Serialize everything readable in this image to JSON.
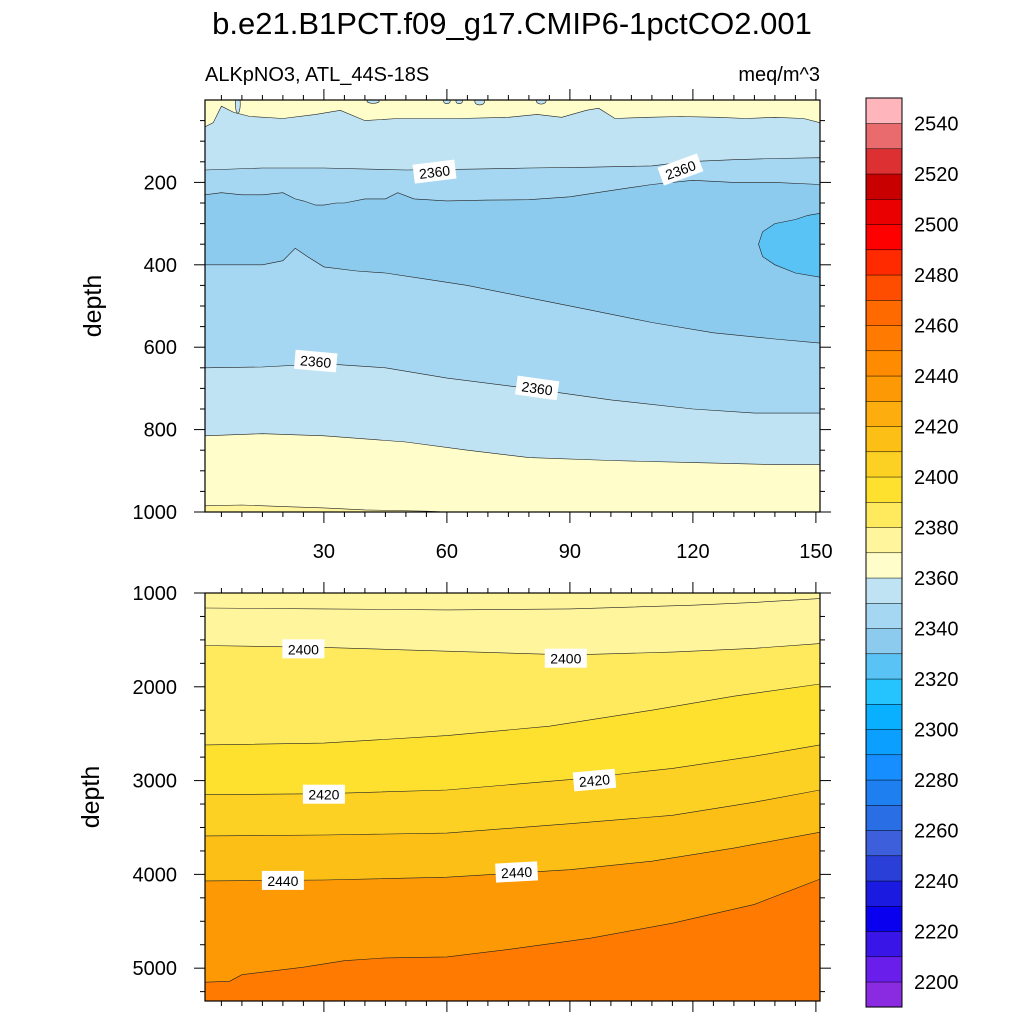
{
  "figure": {
    "title": "b.e21.B1PCT.f09_g17.CMIP6-1pctCO2.001",
    "left_subtitle": "ALKpNO3, ATL_44S-18S",
    "right_subtitle": "meq/m^3"
  },
  "chart_data": [
    {
      "type": "contour",
      "panel": "upper",
      "ylabel": "depth",
      "xlabel": "",
      "xlim": [
        1,
        151
      ],
      "ylim": [
        1000,
        0
      ],
      "xticks": [
        30,
        60,
        90,
        120,
        150
      ],
      "yticks": [
        200,
        400,
        600,
        800,
        1000
      ],
      "contour_labels": [
        {
          "x": 57,
          "depth": 175,
          "text": "2360",
          "angle": -7
        },
        {
          "x": 117,
          "depth": 170,
          "text": "2360",
          "angle": -20
        },
        {
          "x": 28,
          "depth": 635,
          "text": "2360",
          "angle": 5
        },
        {
          "x": 82,
          "depth": 700,
          "text": "2360",
          "angle": 8
        }
      ],
      "regions": [
        {
          "level_min": 2370,
          "level_max": 2380,
          "upper": [
            [
              1,
              0
            ],
            [
              151,
              0
            ]
          ],
          "lower": [
            [
              1,
              1000
            ],
            [
              151,
              1000
            ]
          ]
        },
        {
          "level_min": 2360,
          "level_max": 2370,
          "upper": [
            [
              1,
              65
            ],
            [
              3,
              55
            ],
            [
              5,
              15
            ],
            [
              8,
              30
            ],
            [
              12,
              40
            ],
            [
              20,
              45
            ],
            [
              28,
              35
            ],
            [
              34,
              25
            ],
            [
              40,
              50
            ],
            [
              48,
              45
            ],
            [
              55,
              45
            ],
            [
              63,
              45
            ],
            [
              75,
              42
            ],
            [
              82,
              35
            ],
            [
              88,
              42
            ],
            [
              94,
              25
            ],
            [
              97,
              20
            ],
            [
              101,
              45
            ],
            [
              109,
              42
            ],
            [
              117,
              40
            ],
            [
              126,
              42
            ],
            [
              133,
              45
            ],
            [
              140,
              42
            ],
            [
              147,
              45
            ],
            [
              151,
              55
            ]
          ],
          "lower": [
            [
              1,
              815
            ],
            [
              15,
              810
            ],
            [
              30,
              815
            ],
            [
              50,
              830
            ],
            [
              65,
              850
            ],
            [
              80,
              868
            ],
            [
              100,
              875
            ],
            [
              120,
              880
            ],
            [
              140,
              885
            ],
            [
              151,
              885
            ]
          ]
        },
        {
          "level_min": 2350,
          "level_max": 2360,
          "upper": [
            [
              1,
              170
            ],
            [
              15,
              165
            ],
            [
              30,
              165
            ],
            [
              50,
              170
            ],
            [
              65,
              168
            ],
            [
              80,
              165
            ],
            [
              95,
              163
            ],
            [
              110,
              160
            ],
            [
              118,
              150
            ],
            [
              130,
              145
            ],
            [
              140,
              142
            ],
            [
              151,
              140
            ]
          ],
          "lower": [
            [
              1,
              650
            ],
            [
              15,
              648
            ],
            [
              30,
              640
            ],
            [
              45,
              650
            ],
            [
              60,
              675
            ],
            [
              80,
              700
            ],
            [
              100,
              728
            ],
            [
              120,
              750
            ],
            [
              135,
              760
            ],
            [
              151,
              760
            ]
          ]
        },
        {
          "level_min": 2340,
          "level_max": 2350,
          "upper": [
            [
              1,
              230
            ],
            [
              5,
              225
            ],
            [
              10,
              230
            ],
            [
              15,
              230
            ],
            [
              20,
              225
            ],
            [
              23,
              240
            ],
            [
              25,
              245
            ],
            [
              28,
              255
            ],
            [
              30,
              255
            ],
            [
              33,
              250
            ],
            [
              35,
              250
            ],
            [
              40,
              240
            ],
            [
              45,
              240
            ],
            [
              48,
              225
            ],
            [
              52,
              240
            ],
            [
              60,
              245
            ],
            [
              70,
              243
            ],
            [
              80,
              242
            ],
            [
              90,
              235
            ],
            [
              100,
              220
            ],
            [
              110,
              205
            ],
            [
              120,
              195
            ],
            [
              130,
              200
            ],
            [
              140,
              200
            ],
            [
              151,
              205
            ]
          ],
          "lower": [
            [
              1,
              400
            ],
            [
              15,
              400
            ],
            [
              20,
              390
            ],
            [
              23,
              360
            ],
            [
              26,
              380
            ],
            [
              30,
              405
            ],
            [
              38,
              415
            ],
            [
              45,
              420
            ],
            [
              55,
              435
            ],
            [
              65,
              450
            ],
            [
              80,
              480
            ],
            [
              95,
              510
            ],
            [
              110,
              540
            ],
            [
              125,
              565
            ],
            [
              140,
              580
            ],
            [
              151,
              590
            ]
          ]
        },
        {
          "level_min": 2330,
          "level_max": 2340,
          "upper": [
            [
              151,
              275
            ],
            [
              148,
              280
            ],
            [
              145,
              290
            ],
            [
              140,
              300
            ],
            [
              137,
              320
            ],
            [
              136,
              350
            ],
            [
              137,
              380
            ],
            [
              140,
              400
            ],
            [
              145,
              420
            ],
            [
              151,
              430
            ]
          ],
          "lower": []
        }
      ],
      "ellipses": [
        {
          "x": 9,
          "depth": 10,
          "rx": 0.6,
          "ry": 22,
          "level": 2360
        },
        {
          "x": 60,
          "depth": 3,
          "rx": 0.8,
          "ry": 6,
          "level": 2360
        },
        {
          "x": 63,
          "depth": 3,
          "rx": 0.8,
          "ry": 6,
          "level": 2360
        },
        {
          "x": 68,
          "depth": 4,
          "rx": 1.2,
          "ry": 8,
          "level": 2360
        },
        {
          "x": 42,
          "depth": 3,
          "rx": 1.5,
          "ry": 5,
          "level": 2360
        },
        {
          "x": 83,
          "depth": 2,
          "rx": 1.2,
          "ry": 8,
          "level": 2360
        }
      ],
      "bottom_band": {
        "level": 2390,
        "upper": [
          [
            1,
            985
          ],
          [
            10,
            983
          ],
          [
            20,
            987
          ],
          [
            30,
            990
          ],
          [
            40,
            995
          ],
          [
            55,
            998
          ],
          [
            60,
            1000
          ]
        ]
      }
    },
    {
      "type": "contour",
      "panel": "lower",
      "ylabel": "depth",
      "xlabel": "",
      "xlim": [
        1,
        151
      ],
      "ylim": [
        5350,
        1000
      ],
      "xticks": [
        30,
        60,
        90,
        120,
        150
      ],
      "yticks": [
        1000,
        2000,
        3000,
        4000,
        5000
      ],
      "contour_labels": [
        {
          "x": 25,
          "depth": 1600,
          "text": "2400",
          "angle": 0
        },
        {
          "x": 89,
          "depth": 1700,
          "text": "2400",
          "angle": 0
        },
        {
          "x": 30,
          "depth": 3150,
          "text": "2420",
          "angle": 0
        },
        {
          "x": 96,
          "depth": 3000,
          "text": "2420",
          "angle": -5
        },
        {
          "x": 20,
          "depth": 4070,
          "text": "2440",
          "angle": 0
        },
        {
          "x": 77,
          "depth": 3980,
          "text": "2440",
          "angle": -3
        }
      ],
      "bands": [
        {
          "level": 2380,
          "line": null
        },
        {
          "level": 2390,
          "line": [
            [
              1,
              1160
            ],
            [
              30,
              1170
            ],
            [
              60,
              1180
            ],
            [
              90,
              1170
            ],
            [
              120,
              1130
            ],
            [
              135,
              1100
            ],
            [
              151,
              1060
            ]
          ]
        },
        {
          "level": 2400,
          "line": [
            [
              1,
              1560
            ],
            [
              30,
              1580
            ],
            [
              60,
              1620
            ],
            [
              90,
              1660
            ],
            [
              115,
              1630
            ],
            [
              135,
              1590
            ],
            [
              151,
              1540
            ]
          ]
        },
        {
          "level": 2410,
          "line": [
            [
              1,
              2620
            ],
            [
              30,
              2600
            ],
            [
              60,
              2520
            ],
            [
              85,
              2420
            ],
            [
              110,
              2250
            ],
            [
              130,
              2100
            ],
            [
              151,
              1970
            ]
          ]
        },
        {
          "level": 2420,
          "line": [
            [
              1,
              3150
            ],
            [
              30,
              3140
            ],
            [
              60,
              3100
            ],
            [
              90,
              2990
            ],
            [
              115,
              2870
            ],
            [
              135,
              2740
            ],
            [
              151,
              2620
            ]
          ]
        },
        {
          "level": 2430,
          "line": [
            [
              1,
              3590
            ],
            [
              30,
              3580
            ],
            [
              60,
              3560
            ],
            [
              90,
              3460
            ],
            [
              115,
              3370
            ],
            [
              135,
              3230
            ],
            [
              151,
              3100
            ]
          ]
        },
        {
          "level": 2440,
          "line": [
            [
              1,
              4070
            ],
            [
              30,
              4060
            ],
            [
              60,
              4030
            ],
            [
              90,
              3950
            ],
            [
              110,
              3860
            ],
            [
              130,
              3720
            ],
            [
              151,
              3550
            ]
          ]
        },
        {
          "level": 2450,
          "line": [
            [
              1,
              5150
            ],
            [
              7,
              5140
            ],
            [
              10,
              5070
            ],
            [
              25,
              4990
            ],
            [
              35,
              4920
            ],
            [
              45,
              4890
            ],
            [
              60,
              4880
            ],
            [
              75,
              4800
            ],
            [
              95,
              4680
            ],
            [
              115,
              4520
            ],
            [
              135,
              4320
            ],
            [
              151,
              4050
            ]
          ]
        }
      ]
    }
  ],
  "colorbar": {
    "levels": [
      2200,
      2210,
      2220,
      2230,
      2240,
      2250,
      2260,
      2270,
      2280,
      2290,
      2300,
      2310,
      2320,
      2330,
      2340,
      2350,
      2360,
      2370,
      2380,
      2390,
      2400,
      2410,
      2420,
      2430,
      2440,
      2450,
      2460,
      2470,
      2480,
      2490,
      2500,
      2510,
      2520,
      2530,
      2540,
      2550
    ],
    "labels": [
      "2200",
      "2220",
      "2240",
      "2260",
      "2280",
      "2300",
      "2320",
      "2340",
      "2360",
      "2380",
      "2400",
      "2420",
      "2440",
      "2460",
      "2480",
      "2500",
      "2520",
      "2540"
    ],
    "colors": [
      "#8a2be2",
      "#6a1eec",
      "#3a15e8",
      "#0a00f0",
      "#1a1ae0",
      "#2a3ed8",
      "#3d5fdc",
      "#2a6ee6",
      "#1e7ff0",
      "#168eff",
      "#0ba0ff",
      "#08b0ff",
      "#25c4ff",
      "#5ac3f5",
      "#8ccbee",
      "#a5d6f2",
      "#bfe3f3",
      "#fffdc9",
      "#fff59d",
      "#ffea5e",
      "#fde12e",
      "#fdd024",
      "#fcbf16",
      "#fdad0d",
      "#fc9905",
      "#ff8b00",
      "#ff7a00",
      "#ff6a00",
      "#ff4d00",
      "#ff2a00",
      "#ff0000",
      "#ea0000",
      "#c80000",
      "#dd3033",
      "#ea6b6e",
      "#ffb5bc"
    ]
  },
  "colors": {
    "c2330": "#5ac3f5",
    "c2340": "#8ccbee",
    "c2350": "#a5d6f2",
    "c2360": "#bfe3f3",
    "c2370": "#fffdc9",
    "c2380": "#fff59d",
    "c2390": "#fff59d",
    "c2400": "#ffea5e",
    "c2410": "#fde12e",
    "c2420": "#fdd024",
    "c2430": "#fcbf16",
    "c2440": "#fc9905",
    "c2450": "#ff7a00"
  }
}
